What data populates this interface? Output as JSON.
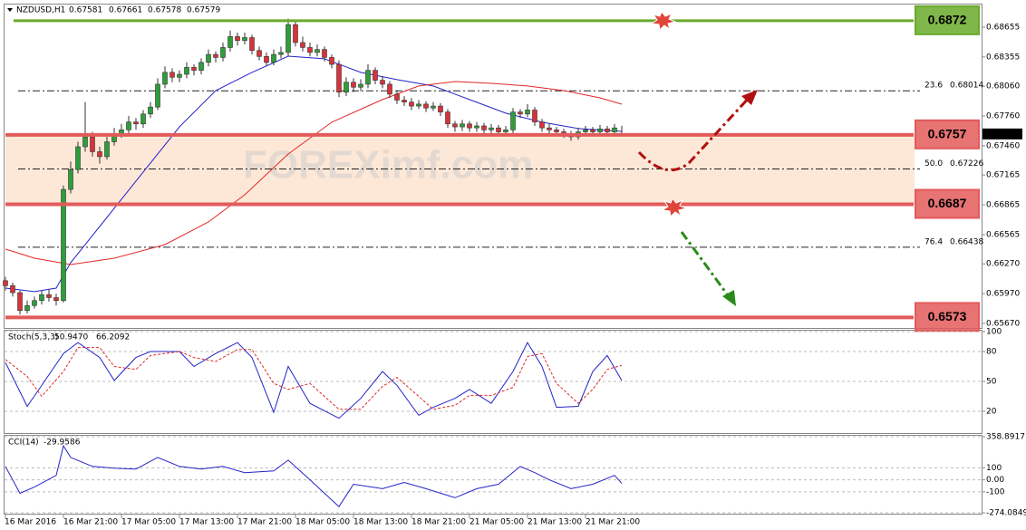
{
  "chart_data": [
    {
      "type": "candlestick",
      "title": "NZDUSD,H1",
      "watermark": "FOREXimf.com",
      "ohlc": [
        [
          0.661,
          0.6614,
          0.66,
          0.6605
        ],
        [
          0.6605,
          0.6608,
          0.6594,
          0.6598
        ],
        [
          0.6598,
          0.66,
          0.6576,
          0.658
        ],
        [
          0.658,
          0.659,
          0.6577,
          0.6585
        ],
        [
          0.6585,
          0.6594,
          0.6582,
          0.659
        ],
        [
          0.659,
          0.66,
          0.6586,
          0.6596
        ],
        [
          0.6596,
          0.6601,
          0.6589,
          0.6593
        ],
        [
          0.6593,
          0.6597,
          0.6585,
          0.659
        ],
        [
          0.659,
          0.6706,
          0.6588,
          0.6702
        ],
        [
          0.6702,
          0.673,
          0.6698,
          0.6722
        ],
        [
          0.6722,
          0.675,
          0.6718,
          0.6745
        ],
        [
          0.6745,
          0.679,
          0.674,
          0.6755
        ],
        [
          0.6755,
          0.676,
          0.6735,
          0.674
        ],
        [
          0.674,
          0.6745,
          0.6728,
          0.6735
        ],
        [
          0.6735,
          0.6755,
          0.6732,
          0.675
        ],
        [
          0.675,
          0.6764,
          0.6746,
          0.6758
        ],
        [
          0.6758,
          0.6768,
          0.6754,
          0.6762
        ],
        [
          0.6762,
          0.6776,
          0.6758,
          0.677
        ],
        [
          0.677,
          0.6774,
          0.6762,
          0.6768
        ],
        [
          0.6768,
          0.6782,
          0.6764,
          0.6778
        ],
        [
          0.6778,
          0.679,
          0.6774,
          0.6785
        ],
        [
          0.6785,
          0.6814,
          0.6782,
          0.6808
        ],
        [
          0.6808,
          0.6826,
          0.6804,
          0.682
        ],
        [
          0.682,
          0.6824,
          0.681,
          0.6815
        ],
        [
          0.6815,
          0.6822,
          0.681,
          0.6818
        ],
        [
          0.6818,
          0.683,
          0.6814,
          0.6825
        ],
        [
          0.6825,
          0.6828,
          0.6817,
          0.6822
        ],
        [
          0.6822,
          0.6834,
          0.6818,
          0.683
        ],
        [
          0.683,
          0.6843,
          0.6826,
          0.6838
        ],
        [
          0.6838,
          0.6841,
          0.683,
          0.6835
        ],
        [
          0.6835,
          0.685,
          0.6831,
          0.6845
        ],
        [
          0.6845,
          0.6862,
          0.6841,
          0.6856
        ],
        [
          0.6856,
          0.686,
          0.6847,
          0.6852
        ],
        [
          0.6852,
          0.686,
          0.6848,
          0.6855
        ],
        [
          0.6855,
          0.6858,
          0.6838,
          0.6842
        ],
        [
          0.6842,
          0.6846,
          0.6832,
          0.6836
        ],
        [
          0.6836,
          0.684,
          0.6826,
          0.683
        ],
        [
          0.683,
          0.6843,
          0.6827,
          0.6838
        ],
        [
          0.6838,
          0.6846,
          0.6834,
          0.684
        ],
        [
          0.684,
          0.6874,
          0.6836,
          0.6868
        ],
        [
          0.6868,
          0.6872,
          0.6846,
          0.685
        ],
        [
          0.685,
          0.6856,
          0.6841,
          0.6845
        ],
        [
          0.6845,
          0.685,
          0.6836,
          0.684
        ],
        [
          0.684,
          0.6848,
          0.6836,
          0.6843
        ],
        [
          0.6843,
          0.6846,
          0.6831,
          0.6835
        ],
        [
          0.6835,
          0.6838,
          0.6824,
          0.6828
        ],
        [
          0.6828,
          0.6832,
          0.6795,
          0.68
        ],
        [
          0.68,
          0.6815,
          0.6796,
          0.681
        ],
        [
          0.681,
          0.6814,
          0.68,
          0.6805
        ],
        [
          0.6805,
          0.6813,
          0.6801,
          0.6808
        ],
        [
          0.6808,
          0.6828,
          0.6804,
          0.6822
        ],
        [
          0.6822,
          0.6825,
          0.6808,
          0.6812
        ],
        [
          0.6812,
          0.6816,
          0.6804,
          0.6808
        ],
        [
          0.6808,
          0.6811,
          0.6794,
          0.6798
        ],
        [
          0.6798,
          0.6802,
          0.6788,
          0.6792
        ],
        [
          0.6792,
          0.6796,
          0.6786,
          0.679
        ],
        [
          0.679,
          0.6794,
          0.6782,
          0.6786
        ],
        [
          0.6786,
          0.6792,
          0.6783,
          0.6788
        ],
        [
          0.6788,
          0.6791,
          0.678,
          0.6784
        ],
        [
          0.6784,
          0.679,
          0.6781,
          0.6786
        ],
        [
          0.6786,
          0.6789,
          0.6776,
          0.678
        ],
        [
          0.678,
          0.6783,
          0.6764,
          0.6768
        ],
        [
          0.6768,
          0.6771,
          0.676,
          0.6765
        ],
        [
          0.6765,
          0.6772,
          0.6761,
          0.6768
        ],
        [
          0.6768,
          0.6771,
          0.676,
          0.6764
        ],
        [
          0.6764,
          0.677,
          0.676,
          0.6766
        ],
        [
          0.6766,
          0.6769,
          0.6758,
          0.6762
        ],
        [
          0.6762,
          0.6768,
          0.6758,
          0.6764
        ],
        [
          0.6764,
          0.6767,
          0.6756,
          0.676
        ],
        [
          0.676,
          0.6766,
          0.6756,
          0.6762
        ],
        [
          0.6762,
          0.6784,
          0.6758,
          0.678
        ],
        [
          0.678,
          0.6783,
          0.6774,
          0.6778
        ],
        [
          0.6778,
          0.6788,
          0.6775,
          0.6782
        ],
        [
          0.6782,
          0.6785,
          0.6766,
          0.677
        ],
        [
          0.677,
          0.6773,
          0.676,
          0.6764
        ],
        [
          0.6764,
          0.6768,
          0.6758,
          0.6762
        ],
        [
          0.6762,
          0.6765,
          0.6756,
          0.676
        ],
        [
          0.676,
          0.6763,
          0.6754,
          0.6758
        ],
        [
          0.6758,
          0.6761,
          0.6751,
          0.6755
        ],
        [
          0.6755,
          0.6764,
          0.6752,
          0.676
        ],
        [
          0.676,
          0.6766,
          0.6757,
          0.6762
        ],
        [
          0.6762,
          0.6765,
          0.6756,
          0.676
        ],
        [
          0.676,
          0.6767,
          0.6757,
          0.6763
        ],
        [
          0.6763,
          0.6766,
          0.6756,
          0.676
        ],
        [
          0.676,
          0.6768,
          0.6757,
          0.6764
        ],
        [
          0.67581,
          0.67661,
          0.67578,
          0.67579
        ]
      ],
      "up_color": "#2e9e3a",
      "down_color": "#d8333a",
      "series": [
        {
          "color": "#2323c8",
          "x": [
            0,
            4,
            7,
            9,
            14,
            19,
            24,
            29,
            34,
            39,
            44,
            49,
            54,
            59,
            64,
            69,
            74,
            79,
            85
          ],
          "values": [
            0.66026,
            0.6599,
            0.66026,
            0.66282,
            0.66738,
            0.67195,
            0.67651,
            0.68016,
            0.68199,
            0.68363,
            0.68336,
            0.68199,
            0.68126,
            0.68062,
            0.67925,
            0.67788,
            0.67697,
            0.67633,
            0.67605
          ]
        },
        {
          "color": "#e02828",
          "x": [
            0,
            4,
            9,
            15,
            22,
            28,
            33,
            39,
            45,
            52,
            57,
            62,
            67,
            72,
            77,
            82,
            85
          ],
          "values": [
            0.66419,
            0.66327,
            0.66263,
            0.66327,
            0.66464,
            0.66692,
            0.66966,
            0.67377,
            0.67697,
            0.67925,
            0.68062,
            0.68107,
            0.68089,
            0.68062,
            0.68016,
            0.67943,
            0.67879
          ]
        }
      ],
      "levels": [
        {
          "value": 0.6872,
          "color": "#6aaa2a"
        },
        {
          "value": 0.6757,
          "color": "#e35a5a"
        },
        {
          "value": 0.6687,
          "color": "#e35a5a"
        },
        {
          "value": 0.6573,
          "color": "#e35a5a"
        }
      ],
      "fibs": [
        {
          "label": "23.6",
          "price": 0.68014
        },
        {
          "label": "50.0",
          "price": 0.67226
        },
        {
          "label": "76.4",
          "price": 0.66438
        }
      ],
      "ylim": [
        0.65624,
        0.68883
      ],
      "yticks": [
        0.68655,
        0.68355,
        {
          "value": 0.6806,
          "label": "0.68060"
        },
        {
          "value": 0.6776,
          "label": "0.67760"
        },
        {
          "value": 0.6746,
          "label": "0.67460"
        },
        0.67165,
        0.66865,
        0.66565,
        {
          "value": 0.6627,
          "label": "0.66270"
        },
        {
          "value": 0.6597,
          "label": "0.65970"
        },
        {
          "value": 0.6567,
          "label": "0.65670"
        }
      ],
      "xticks": [
        {
          "value": 0,
          "label": "16 Mar 2016"
        },
        {
          "value": 8,
          "label": "16 Mar 21:00"
        },
        {
          "value": 16,
          "label": "17 Mar 05:00"
        },
        {
          "value": 24,
          "label": "17 Mar 13:00"
        },
        {
          "value": 32,
          "label": "17 Mar 21:00"
        },
        {
          "value": 40,
          "label": "18 Mar 05:00"
        },
        {
          "value": 48,
          "label": "18 Mar 13:00"
        },
        {
          "value": 56,
          "label": "18 Mar 21:00"
        },
        {
          "value": 64,
          "label": "21 Mar 05:00"
        },
        {
          "value": 72,
          "label": "21 Mar 13:00"
        },
        {
          "value": 80,
          "label": "21 Mar 21:00"
        }
      ]
    },
    {
      "type": "line",
      "title": "Stoch(5,3,3)",
      "readouts": [
        {
          "value": 50.947,
          "label": "50.9470"
        },
        66.2092
      ],
      "ylim": [
        0,
        100
      ],
      "yticks": [
        20,
        50,
        80,
        100
      ],
      "series": [
        {
          "color": "#2323c8",
          "x": [
            0,
            3,
            5,
            8,
            10,
            13,
            15,
            18,
            20,
            24,
            26,
            29,
            32,
            34,
            37,
            39,
            42,
            46,
            49,
            52,
            54,
            57,
            59,
            62,
            64,
            67,
            70,
            72,
            74,
            76,
            79,
            81,
            83,
            85
          ],
          "values": [
            69,
            25,
            46,
            78,
            89,
            74,
            51,
            74,
            80,
            80,
            65,
            78,
            89,
            74,
            19,
            65,
            28,
            13,
            33,
            60,
            46,
            16,
            24,
            33,
            42,
            28,
            60,
            89,
            65,
            24,
            25,
            60,
            76,
            50.947
          ]
        },
        {
          "color": "#e02828",
          "dashed": true,
          "x": [
            0,
            3,
            5,
            8,
            10,
            13,
            15,
            18,
            20,
            24,
            26,
            29,
            32,
            34,
            37,
            39,
            42,
            46,
            49,
            52,
            54,
            57,
            59,
            62,
            64,
            67,
            70,
            72,
            74,
            76,
            79,
            81,
            83,
            85
          ],
          "values": [
            72,
            55,
            35,
            60,
            84,
            84,
            65,
            62,
            76,
            80,
            74,
            70,
            82,
            82,
            48,
            42,
            48,
            22,
            22,
            45,
            54,
            35,
            22,
            26,
            36,
            36,
            44,
            75,
            78,
            48,
            28,
            42,
            62,
            66.2092
          ]
        }
      ]
    },
    {
      "type": "line",
      "title": "CCI(14)",
      "readouts": [
        -29.9586
      ],
      "ylim": [
        -274.0849,
        358.8917
      ],
      "yticks": [
        358.8917,
        100,
        {
          "value": 0,
          "label": "0.00"
        },
        -100,
        -274.0849
      ],
      "series": [
        {
          "color": "#2323c8",
          "x": [
            0,
            2,
            4,
            7,
            8,
            9,
            12,
            15,
            18,
            21,
            24,
            27,
            30,
            33,
            37,
            39,
            42,
            46,
            48,
            52,
            55,
            58,
            62,
            65,
            68,
            71,
            73,
            75,
            78,
            81,
            84,
            85
          ],
          "values": [
            112,
            -112,
            -60,
            37,
            283,
            186,
            112,
            97,
            89,
            186,
            112,
            89,
            112,
            60,
            74,
            164,
            0,
            -223,
            -37,
            -74,
            -22,
            -74,
            -149,
            -74,
            -37,
            112,
            60,
            0,
            -74,
            -37,
            37,
            -29.9586
          ]
        }
      ]
    }
  ]
}
